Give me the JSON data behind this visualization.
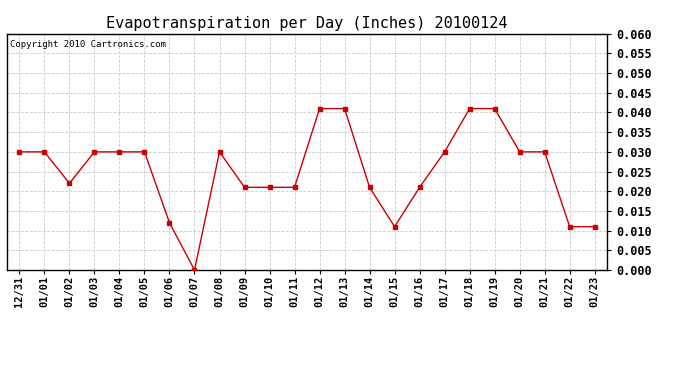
{
  "title": "Evapotranspiration per Day (Inches) 20100124",
  "copyright_text": "Copyright 2010 Cartronics.com",
  "x_labels": [
    "12/31",
    "01/01",
    "01/02",
    "01/03",
    "01/04",
    "01/05",
    "01/06",
    "01/07",
    "01/08",
    "01/09",
    "01/10",
    "01/11",
    "01/12",
    "01/13",
    "01/14",
    "01/15",
    "01/16",
    "01/17",
    "01/18",
    "01/19",
    "01/20",
    "01/21",
    "01/22",
    "01/23"
  ],
  "y_values": [
    0.03,
    0.03,
    0.022,
    0.03,
    0.03,
    0.03,
    0.012,
    0.0,
    0.03,
    0.021,
    0.021,
    0.021,
    0.041,
    0.041,
    0.021,
    0.011,
    0.021,
    0.03,
    0.041,
    0.041,
    0.03,
    0.03,
    0.011,
    0.011
  ],
  "line_color": "#cc0000",
  "marker": "s",
  "marker_size": 3,
  "ylim": [
    0.0,
    0.06
  ],
  "yticks": [
    0.0,
    0.005,
    0.01,
    0.015,
    0.02,
    0.025,
    0.03,
    0.035,
    0.04,
    0.045,
    0.05,
    0.055,
    0.06
  ],
  "grid_color": "#cccccc",
  "background_color": "#ffffff",
  "title_fontsize": 11,
  "copyright_fontsize": 6.5,
  "tick_fontsize": 7.5,
  "ytick_fontsize": 8.5,
  "border_color": "#000000"
}
